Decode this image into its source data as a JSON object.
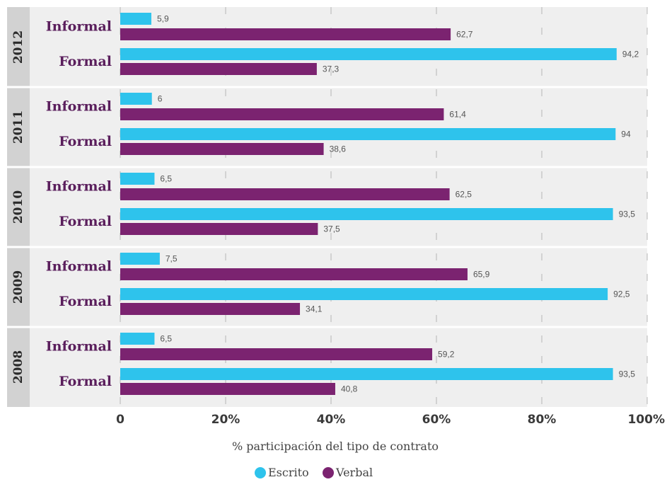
{
  "chart_data": {
    "type": "bar",
    "orientation": "horizontal",
    "xlabel": "% participación del tipo de contrato",
    "xlim": [
      0,
      100
    ],
    "ticks": [
      {
        "value": 0,
        "label": "0"
      },
      {
        "value": 20,
        "label": "20%"
      },
      {
        "value": 40,
        "label": "40%"
      },
      {
        "value": 60,
        "label": "60%"
      },
      {
        "value": 80,
        "label": "80%"
      },
      {
        "value": 100,
        "label": "100%"
      }
    ],
    "grid": true,
    "legend_position": "bottom",
    "series": [
      {
        "key": "escrito",
        "name": "Escrito",
        "color": "#2ec3ec"
      },
      {
        "key": "verbal",
        "name": "Verbal",
        "color": "#7b2370"
      }
    ],
    "groups": [
      {
        "year": "2012",
        "categories": [
          {
            "label": "Informal",
            "escrito": 5.9,
            "escrito_label": "5,9",
            "verbal": 62.7,
            "verbal_label": "62,7"
          },
          {
            "label": "Formal",
            "escrito": 94.2,
            "escrito_label": "94,2",
            "verbal": 37.3,
            "verbal_label": "37,3"
          }
        ]
      },
      {
        "year": "2011",
        "categories": [
          {
            "label": "Informal",
            "escrito": 6,
            "escrito_label": "6",
            "verbal": 61.4,
            "verbal_label": "61,4"
          },
          {
            "label": "Formal",
            "escrito": 94,
            "escrito_label": "94",
            "verbal": 38.6,
            "verbal_label": "38,6"
          }
        ]
      },
      {
        "year": "2010",
        "categories": [
          {
            "label": "Informal",
            "escrito": 6.5,
            "escrito_label": "6,5",
            "verbal": 62.5,
            "verbal_label": "62,5"
          },
          {
            "label": "Formal",
            "escrito": 93.5,
            "escrito_label": "93,5",
            "verbal": 37.5,
            "verbal_label": "37,5"
          }
        ]
      },
      {
        "year": "2009",
        "categories": [
          {
            "label": "Informal",
            "escrito": 7.5,
            "escrito_label": "7,5",
            "verbal": 65.9,
            "verbal_label": "65,9"
          },
          {
            "label": "Formal",
            "escrito": 92.5,
            "escrito_label": "92,5",
            "verbal": 34.1,
            "verbal_label": "34,1"
          }
        ]
      },
      {
        "year": "2008",
        "categories": [
          {
            "label": "Informal",
            "escrito": 6.5,
            "escrito_label": "6,5",
            "verbal": 59.2,
            "verbal_label": "59,2"
          },
          {
            "label": "Formal",
            "escrito": 93.5,
            "escrito_label": "93,5",
            "verbal": 40.8,
            "verbal_label": "40,8"
          }
        ]
      }
    ]
  }
}
